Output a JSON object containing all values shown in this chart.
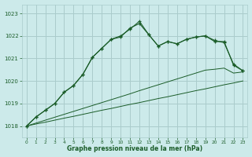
{
  "xlabel_label": "Graphe pression niveau de la mer (hPa)",
  "bg_color": "#cceaea",
  "grid_color": "#aacccc",
  "line_color": "#1a5c28",
  "xlim": [
    -0.5,
    23.5
  ],
  "ylim": [
    1017.5,
    1023.4
  ],
  "yticks": [
    1018,
    1019,
    1020,
    1021,
    1022,
    1023
  ],
  "xticks": [
    0,
    1,
    2,
    3,
    4,
    5,
    6,
    7,
    8,
    9,
    10,
    11,
    12,
    13,
    14,
    15,
    16,
    17,
    18,
    19,
    20,
    21,
    22,
    23
  ],
  "series_straight": [
    1018.0,
    1018.09,
    1018.17,
    1018.26,
    1018.35,
    1018.43,
    1018.52,
    1018.61,
    1018.7,
    1018.78,
    1018.87,
    1018.96,
    1019.04,
    1019.13,
    1019.22,
    1019.3,
    1019.39,
    1019.48,
    1019.57,
    1019.65,
    1019.74,
    1019.83,
    1019.91,
    1020.0
  ],
  "series_straight2": [
    1018.0,
    1018.13,
    1018.26,
    1018.39,
    1018.52,
    1018.65,
    1018.78,
    1018.91,
    1019.04,
    1019.17,
    1019.3,
    1019.43,
    1019.57,
    1019.7,
    1019.83,
    1019.96,
    1020.09,
    1020.22,
    1020.35,
    1020.48,
    1020.52,
    1020.57,
    1020.35,
    1020.4
  ],
  "series1": [
    1018.0,
    1018.4,
    1018.7,
    1019.0,
    1019.5,
    1019.8,
    1020.3,
    1021.05,
    1021.45,
    1021.85,
    1021.95,
    1022.35,
    1022.55,
    1022.05,
    1021.55,
    1021.75,
    1021.65,
    1021.85,
    1021.95,
    1022.0,
    1021.8,
    1021.7,
    1020.75,
    1020.45
  ],
  "series2": [
    1018.0,
    1018.4,
    1018.7,
    1019.0,
    1019.5,
    1019.8,
    1020.3,
    1021.05,
    1021.45,
    1021.85,
    1022.0,
    1022.3,
    1022.65,
    1022.05,
    1021.55,
    1021.75,
    1021.65,
    1021.85,
    1021.95,
    1022.0,
    1021.75,
    1021.75,
    1020.7,
    1020.45
  ]
}
